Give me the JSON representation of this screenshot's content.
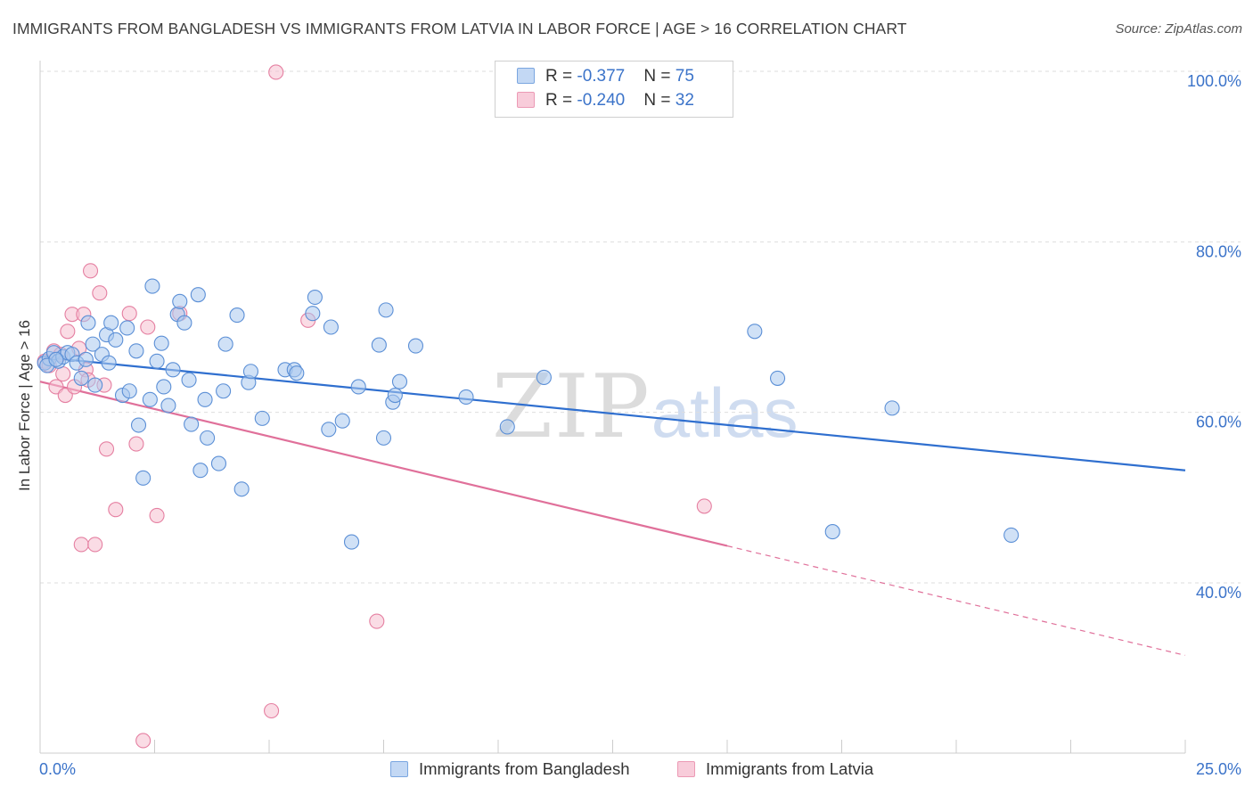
{
  "title": "IMMIGRANTS FROM BANGLADESH VS IMMIGRANTS FROM LATVIA IN LABOR FORCE | AGE > 16 CORRELATION CHART",
  "source": "Source: ZipAtlas.com",
  "watermark": {
    "zip": "ZIP",
    "atlas": "atlas"
  },
  "legend": {
    "rows": [
      {
        "r_label": "R = ",
        "r_value": "-0.377",
        "n_label": "N = ",
        "n_value": "75"
      },
      {
        "r_label": "R = ",
        "r_value": "-0.240",
        "n_label": "N = ",
        "n_value": "32"
      }
    ]
  },
  "colors": {
    "bangladesh_fill": "#a9c8ee",
    "bangladesh_stroke": "#5b8fd6",
    "bangladesh_line": "#2f6fcf",
    "latvia_fill": "#f6c0d0",
    "latvia_stroke": "#e57fa1",
    "latvia_line": "#e0709a",
    "tick_label": "#3b73c9",
    "grid": "#dddddd"
  },
  "chart_data": {
    "type": "scatter",
    "ylabel": "In Labor Force | Age > 16",
    "xlim": [
      0,
      25
    ],
    "ylim": [
      20,
      100
    ],
    "x_tick_labels": [
      {
        "value": 0,
        "label": "0.0%"
      },
      {
        "value": 25,
        "label": "25.0%"
      }
    ],
    "y_tick_labels": [
      {
        "value": 100,
        "label": "100.0%"
      },
      {
        "value": 80,
        "label": "80.0%"
      },
      {
        "value": 60,
        "label": "60.0%"
      },
      {
        "value": 40,
        "label": "40.0%"
      }
    ],
    "grid": true,
    "legend_position": "top-center",
    "series": [
      {
        "name": "Immigrants from Bangladesh",
        "color_key": "bangladesh",
        "r": -0.377,
        "n": 75,
        "trend": {
          "x1": 0,
          "y1": 66.5,
          "x2": 25,
          "y2": 53.2,
          "solid_to": 25
        },
        "points": [
          [
            0.1,
            65.8
          ],
          [
            0.2,
            66.3
          ],
          [
            0.3,
            67.0
          ],
          [
            0.4,
            66.0
          ],
          [
            0.5,
            66.5
          ],
          [
            0.6,
            67.0
          ],
          [
            0.7,
            66.8
          ],
          [
            0.8,
            65.8
          ],
          [
            0.9,
            64.0
          ],
          [
            1.0,
            66.2
          ],
          [
            1.05,
            70.5
          ],
          [
            1.15,
            68.0
          ],
          [
            1.2,
            63.2
          ],
          [
            1.35,
            66.8
          ],
          [
            1.45,
            69.1
          ],
          [
            1.5,
            65.8
          ],
          [
            1.55,
            70.5
          ],
          [
            1.65,
            68.5
          ],
          [
            1.8,
            62.0
          ],
          [
            1.9,
            69.9
          ],
          [
            1.95,
            62.5
          ],
          [
            2.1,
            67.2
          ],
          [
            2.15,
            58.5
          ],
          [
            2.25,
            52.3
          ],
          [
            2.4,
            61.5
          ],
          [
            2.45,
            74.8
          ],
          [
            2.55,
            66.0
          ],
          [
            2.65,
            68.1
          ],
          [
            2.7,
            63.0
          ],
          [
            2.8,
            60.8
          ],
          [
            2.9,
            65.0
          ],
          [
            3.0,
            71.5
          ],
          [
            3.05,
            73.0
          ],
          [
            3.15,
            70.5
          ],
          [
            3.25,
            63.8
          ],
          [
            3.3,
            58.6
          ],
          [
            3.45,
            73.8
          ],
          [
            3.5,
            53.2
          ],
          [
            3.6,
            61.5
          ],
          [
            3.65,
            57.0
          ],
          [
            3.9,
            54.0
          ],
          [
            4.0,
            62.5
          ],
          [
            4.05,
            68.0
          ],
          [
            4.3,
            71.4
          ],
          [
            4.4,
            51.0
          ],
          [
            4.55,
            63.5
          ],
          [
            4.6,
            64.8
          ],
          [
            4.85,
            59.3
          ],
          [
            5.35,
            65.0
          ],
          [
            5.55,
            65.0
          ],
          [
            5.6,
            64.6
          ],
          [
            5.95,
            71.6
          ],
          [
            6.0,
            73.5
          ],
          [
            6.3,
            58.0
          ],
          [
            6.35,
            70.0
          ],
          [
            6.6,
            59.0
          ],
          [
            6.8,
            44.8
          ],
          [
            6.95,
            63.0
          ],
          [
            7.4,
            67.9
          ],
          [
            7.5,
            57.0
          ],
          [
            7.55,
            72.0
          ],
          [
            7.7,
            61.2
          ],
          [
            7.75,
            62.0
          ],
          [
            7.85,
            63.6
          ],
          [
            8.2,
            67.8
          ],
          [
            9.3,
            61.8
          ],
          [
            10.2,
            58.3
          ],
          [
            11.0,
            64.1
          ],
          [
            15.6,
            69.5
          ],
          [
            16.1,
            64.0
          ],
          [
            17.3,
            46.0
          ],
          [
            18.6,
            60.5
          ],
          [
            21.2,
            45.6
          ],
          [
            0.15,
            65.5
          ],
          [
            0.35,
            66.2
          ]
        ]
      },
      {
        "name": "Immigrants from Latvia",
        "color_key": "latvia",
        "r": -0.24,
        "n": 32,
        "trend": {
          "x1": 0,
          "y1": 63.6,
          "x2": 25,
          "y2": 31.5,
          "solid_to": 15.0
        },
        "points": [
          [
            0.1,
            66.0
          ],
          [
            0.2,
            65.5
          ],
          [
            0.3,
            67.2
          ],
          [
            0.35,
            63.0
          ],
          [
            0.45,
            66.8
          ],
          [
            0.5,
            64.5
          ],
          [
            0.55,
            62.0
          ],
          [
            0.6,
            69.5
          ],
          [
            0.7,
            71.5
          ],
          [
            0.75,
            63.0
          ],
          [
            0.85,
            67.5
          ],
          [
            0.9,
            44.5
          ],
          [
            0.95,
            71.5
          ],
          [
            1.0,
            65.0
          ],
          [
            1.05,
            63.8
          ],
          [
            1.1,
            76.6
          ],
          [
            1.2,
            44.5
          ],
          [
            1.3,
            74.0
          ],
          [
            1.4,
            63.2
          ],
          [
            1.45,
            55.7
          ],
          [
            1.65,
            48.6
          ],
          [
            1.95,
            71.6
          ],
          [
            2.1,
            56.3
          ],
          [
            2.25,
            21.5
          ],
          [
            2.35,
            70.0
          ],
          [
            2.55,
            47.9
          ],
          [
            3.05,
            71.6
          ],
          [
            5.15,
            99.9
          ],
          [
            5.05,
            25.0
          ],
          [
            5.85,
            70.8
          ],
          [
            7.35,
            35.5
          ],
          [
            14.5,
            49.0
          ]
        ]
      }
    ]
  }
}
